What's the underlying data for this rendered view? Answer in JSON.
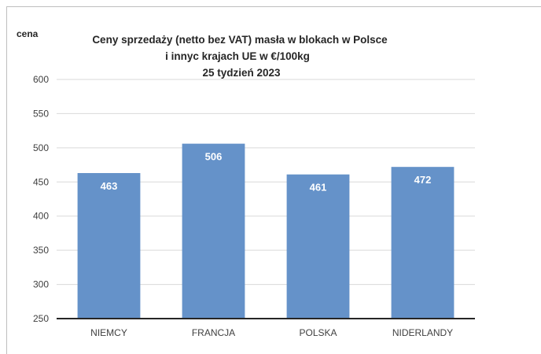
{
  "chart_data": {
    "type": "bar",
    "title": [
      "Ceny sprzedaży (netto bez VAT) masła w blokach w Polsce",
      "i innyc krajach UE w €/100kg",
      "25 tydzień 2023"
    ],
    "ylabel": "cena",
    "xlabel": "",
    "categories": [
      "NIEMCY",
      "FRANCJA",
      "POLSKA",
      "NIDERLANDY"
    ],
    "values": [
      463,
      506,
      461,
      472
    ],
    "data_labels": [
      "463",
      "506",
      "461",
      "472"
    ],
    "ylim": [
      250,
      600
    ],
    "yticks": [
      600,
      550,
      500,
      450,
      400,
      350,
      300,
      250
    ],
    "grid": true,
    "legend": "none",
    "colors": {
      "bar": "#6592c9",
      "grid": "#d9d9d9",
      "axis": "#262626"
    }
  }
}
